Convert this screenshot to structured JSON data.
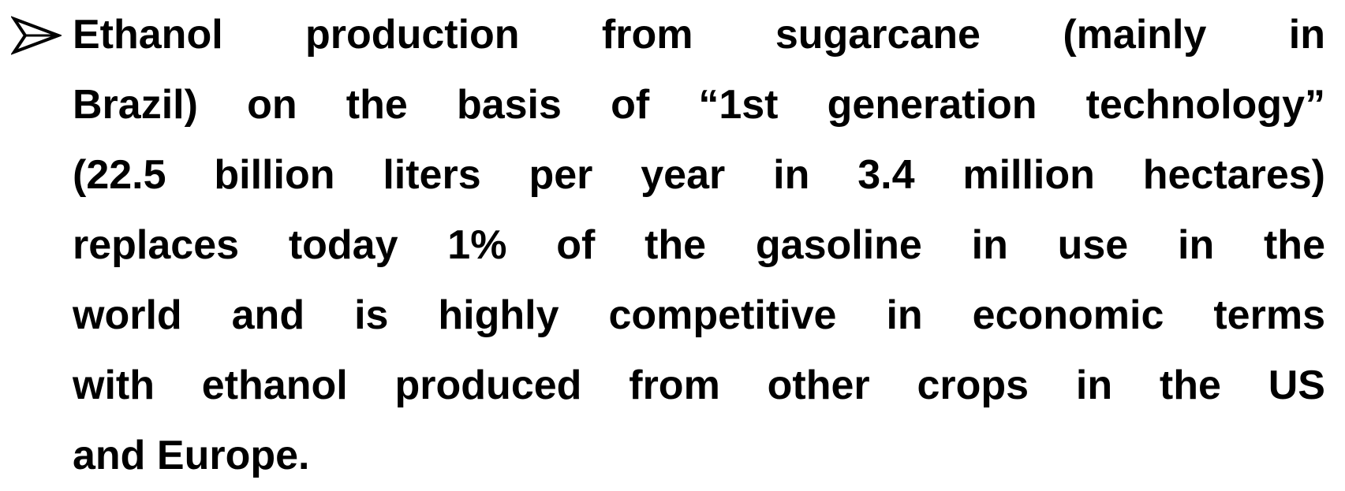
{
  "bullet": {
    "lines": [
      "Ethanol production from sugarcane (mainly in",
      "Brazil) on the basis of “1st generation technology”",
      "(22.5 billion liters per year in 3.4 million hectares)",
      "replaces today 1% of the gasoline in use in the",
      "world and is highly competitive in economic terms",
      "with ethanol produced from other crops in the US",
      "and Europe."
    ]
  }
}
